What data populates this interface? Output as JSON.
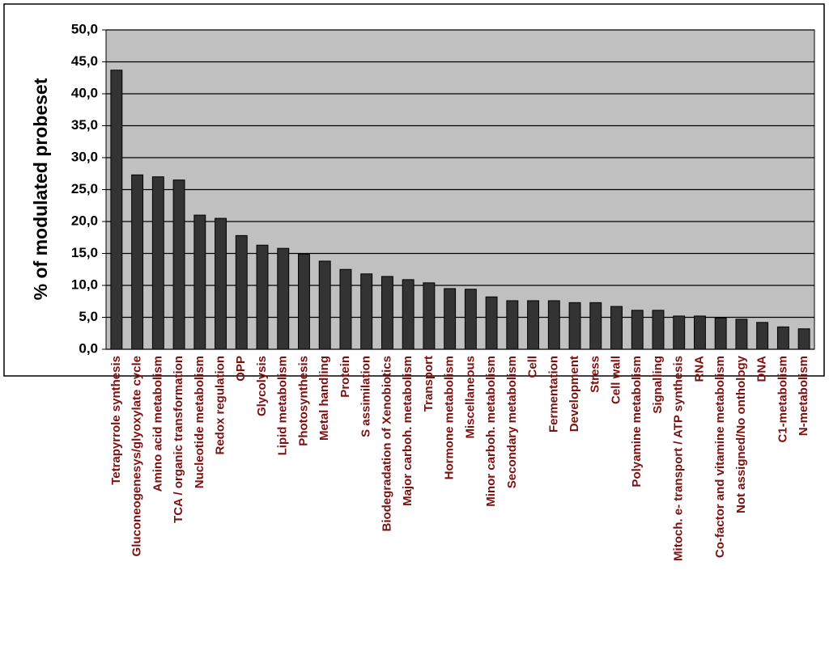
{
  "chart_data": {
    "type": "bar",
    "y_label": "% of modulated probeset",
    "categories": [
      "Tetrapyrrole synthesis",
      "Gluconeogenesys/glyoxylate cycle",
      "Amino acid metabolism",
      "TCA / organic transformation",
      "Nucleotide metabolism",
      "Redox regulation",
      "OPP",
      "Glycolysis",
      "Lipid metabolism",
      "Photosynthesis",
      "Metal handling",
      "Protein",
      "S assimilation",
      "Biodegradation of Xenobiotics",
      "Major carboh. metabolism",
      "Transport",
      "Hormone metabolism",
      "Miscellaneous",
      "Minor carboh. metabolism",
      "Secondary metabolism",
      "Cell",
      "Fermentation",
      "Development",
      "Stress",
      "Cell wall",
      "Polyamine metabolism",
      "Signalling",
      "Mitoch. e- transport / ATP synthesis",
      "RNA",
      "Co-factor and vitamine metabolism",
      "Not assigned/No onthology",
      "DNA",
      "C1-metabolism",
      "N-metabolism"
    ],
    "values": [
      43.7,
      27.3,
      27.0,
      26.5,
      21.0,
      20.5,
      17.8,
      16.3,
      15.8,
      14.9,
      13.8,
      12.5,
      11.8,
      11.4,
      10.9,
      10.4,
      9.5,
      9.4,
      8.2,
      7.6,
      7.6,
      7.6,
      7.3,
      7.3,
      6.7,
      6.1,
      6.1,
      5.2,
      5.2,
      4.9,
      4.7,
      4.2,
      3.5,
      3.2
    ],
    "color": "#333333",
    "ylim": [
      0,
      50
    ],
    "yticks": [
      {
        "value": 0,
        "label": "0,0"
      },
      {
        "value": 5,
        "label": "5,0"
      },
      {
        "value": 10,
        "label": "10,0"
      },
      {
        "value": 15,
        "label": "15,0"
      },
      {
        "value": 20,
        "label": "20,0"
      },
      {
        "value": 25,
        "label": "25,0"
      },
      {
        "value": 30,
        "label": "30,0"
      },
      {
        "value": 35,
        "label": "35,0"
      },
      {
        "value": 40,
        "label": "40,0"
      },
      {
        "value": 45,
        "label": "45,0"
      },
      {
        "value": 50,
        "label": "50,0"
      }
    ],
    "grid": true
  }
}
